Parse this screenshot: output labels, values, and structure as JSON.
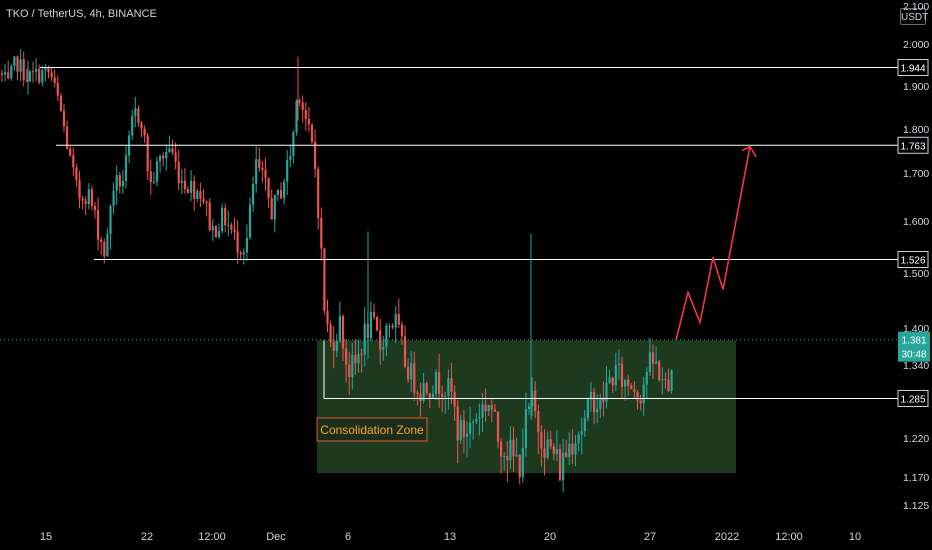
{
  "header": {
    "symbol_label": "TKO / TetherUS, 4h, BINANCE",
    "currency_label": "USDT"
  },
  "chart_data": {
    "type": "candlestick",
    "symbol": "TKO / TetherUS",
    "interval": "4h",
    "exchange": "BINANCE",
    "y_axis": {
      "ticks": [
        "2.100",
        "2.000",
        "1.900",
        "1.800",
        "1.700",
        "1.600",
        "1.500",
        "1.400",
        "1.340",
        "1.220",
        "1.170",
        "1.125"
      ],
      "values": [
        2.1,
        2.0,
        1.9,
        1.8,
        1.7,
        1.6,
        1.5,
        1.4,
        1.34,
        1.22,
        1.17,
        1.125
      ]
    },
    "x_axis": {
      "ticks": [
        "15",
        "22",
        "12:00",
        "Dec",
        "6",
        "13",
        "20",
        "27",
        "2022",
        "12:00",
        "10"
      ]
    },
    "horizontal_levels": [
      {
        "label": "1.944",
        "value": 1.944
      },
      {
        "label": "1.763",
        "value": 1.763
      },
      {
        "label": "1.526",
        "value": 1.526
      },
      {
        "label": "1.285",
        "value": 1.285
      }
    ],
    "current_price": {
      "label": "1.381",
      "countdown": "30:48",
      "value": 1.381
    },
    "consolidation_zone": {
      "label": "Consolidation Zone",
      "top": 1.38,
      "bottom": 1.175
    },
    "projection_path": [
      1.38,
      1.465,
      1.41,
      1.53,
      1.47,
      1.76
    ],
    "colors": {
      "up": "#26a69a",
      "down": "#ef5350",
      "zone": "#1e3a1e",
      "projection": "#f23645",
      "level": "#ffffff",
      "zone_label": "#f5a623"
    }
  }
}
